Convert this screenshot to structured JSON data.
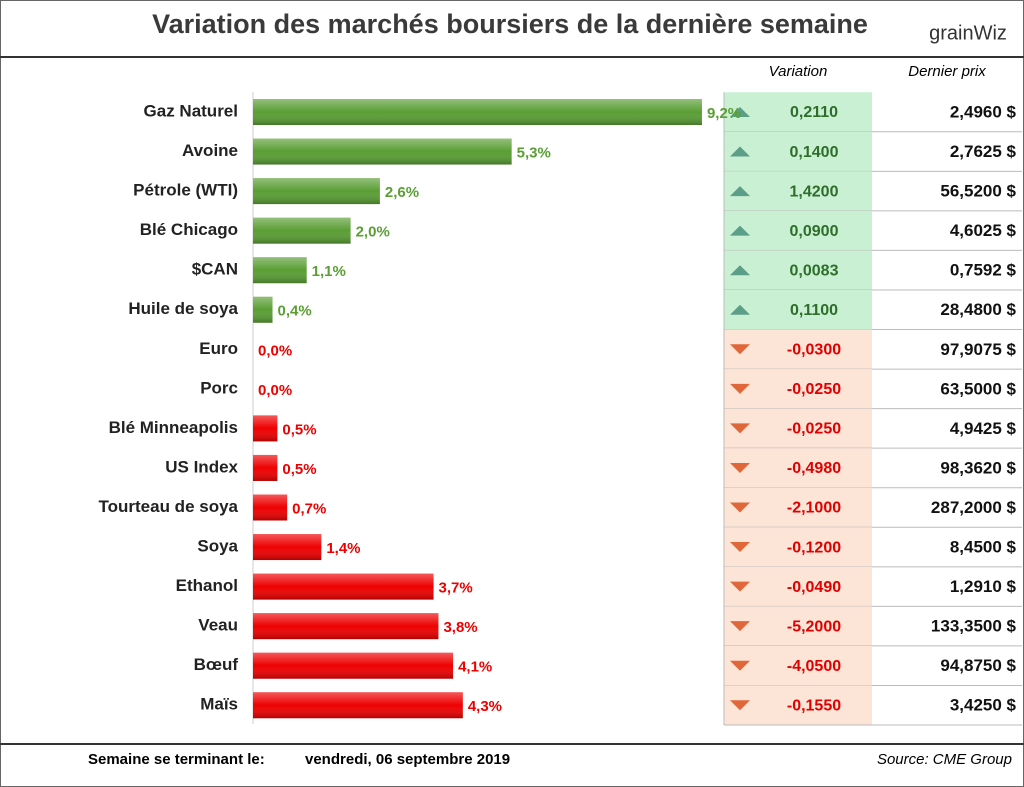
{
  "header": {
    "title": "Variation des marchés boursiers de la dernière semaine",
    "logo": "grainWiz"
  },
  "chart_data": {
    "type": "bar",
    "orientation": "horizontal",
    "categories": [
      "Gaz Naturel",
      "Avoine",
      "Pétrole (WTI)",
      "Blé Chicago",
      "$CAN",
      "Huile de soya",
      "Euro",
      "Porc",
      "Blé Minneapolis",
      "US Index",
      "Tourteau de soya",
      "Soya",
      "Ethanol",
      "Veau",
      "Bœuf",
      "Maïs"
    ],
    "values": [
      9.2,
      5.3,
      2.6,
      2.0,
      1.1,
      0.4,
      0.0,
      0.0,
      0.5,
      0.5,
      0.7,
      1.4,
      3.7,
      3.8,
      4.1,
      4.3
    ],
    "value_labels": [
      "9,2%",
      "5,3%",
      "2,6%",
      "2,0%",
      "1,1%",
      "0,4%",
      "0,0%",
      "0,0%",
      "0,5%",
      "0,5%",
      "0,7%",
      "1,4%",
      "3,7%",
      "3,8%",
      "4,1%",
      "4,3%"
    ],
    "colors": [
      "#5a9e34",
      "#5a9e34",
      "#5a9e34",
      "#5a9e34",
      "#5a9e34",
      "#5a9e34",
      "#ee0000",
      "#ee0000",
      "#ee0000",
      "#ee0000",
      "#ee0000",
      "#ee0000",
      "#ee0000",
      "#ee0000",
      "#ee0000",
      "#ee0000"
    ],
    "xlim": [
      0,
      10
    ]
  },
  "table": {
    "headers": [
      "Variation",
      "Dernier prix"
    ],
    "rows": [
      [
        "0,2110",
        "2,4960 $"
      ],
      [
        "0,1400",
        "2,7625 $"
      ],
      [
        "1,4200",
        "56,5200 $"
      ],
      [
        "0,0900",
        "4,6025 $"
      ],
      [
        "0,0083",
        "0,7592 $"
      ],
      [
        "0,1100",
        "28,4800 $"
      ],
      [
        "-0,0300",
        "97,9075 $"
      ],
      [
        "-0,0250",
        "63,5000 $"
      ],
      [
        "-0,0250",
        "4,9425 $"
      ],
      [
        "-0,4980",
        "98,3620 $"
      ],
      [
        "-2,1000",
        "287,2000 $"
      ],
      [
        "-0,1200",
        "8,4500 $"
      ],
      [
        "-0,0490",
        "1,2910 $"
      ],
      [
        "-5,2000",
        "133,3500 $"
      ],
      [
        "-4,0500",
        "94,8750 $"
      ],
      [
        "-0,1550",
        "3,4250 $"
      ]
    ]
  },
  "footer": {
    "week_label": "Semaine se terminant le:",
    "date": "vendredi, 06 septembre 2019",
    "source": "Source: CME Group"
  }
}
